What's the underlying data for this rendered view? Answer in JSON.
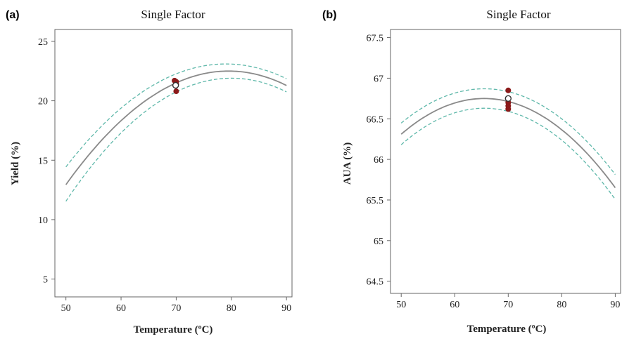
{
  "chart_data": [
    {
      "panel": "(a)",
      "type": "line",
      "title": "Single Factor",
      "xlabel": "Temperature (ºC)",
      "ylabel": "Yield (%)",
      "xlim": [
        48,
        91
      ],
      "ylim": [
        3.5,
        26
      ],
      "xticks": [
        "50",
        "60",
        "70",
        "80",
        "90"
      ],
      "yticks": [
        "5",
        "10",
        "15",
        "20",
        "25"
      ],
      "fit": {
        "a": 22.5,
        "h": 79.5,
        "k": 0.01098
      },
      "ci_upper": {
        "a": 23.1,
        "h": 79.0,
        "k": 0.0103
      },
      "ci_lower": {
        "a": 21.9,
        "h": 80.0,
        "k": 0.0115
      },
      "x_range": [
        50,
        90
      ],
      "points": [
        {
          "x": 69.7,
          "y": 21.7,
          "style": "filled"
        },
        {
          "x": 70.0,
          "y": 21.6,
          "style": "filled"
        },
        {
          "x": 70.0,
          "y": 21.4,
          "style": "filled"
        },
        {
          "x": 70.0,
          "y": 20.8,
          "style": "filled"
        },
        {
          "x": 69.9,
          "y": 21.3,
          "style": "open"
        }
      ],
      "colors": {
        "fit": "#8a8a8a",
        "ci": "#5fb8aa",
        "point": "#8b1a1a"
      }
    },
    {
      "panel": "(b)",
      "type": "line",
      "title": "Single Factor",
      "xlabel": "Temperature (ºC)",
      "ylabel": "AUA (%)",
      "xlim": [
        48,
        91
      ],
      "ylim": [
        64.35,
        67.6
      ],
      "xticks": [
        "50",
        "60",
        "70",
        "80",
        "90"
      ],
      "yticks": [
        "64.5",
        "65",
        "65.5",
        "66",
        "66.5",
        "67",
        "67.5"
      ],
      "fit": {
        "a": 66.75,
        "h": 65.5,
        "k": 0.00183
      },
      "ci_upper": {
        "a": 66.87,
        "h": 65.5,
        "k": 0.00176
      },
      "ci_lower": {
        "a": 66.63,
        "h": 65.5,
        "k": 0.00187
      },
      "x_range": [
        50,
        90
      ],
      "points": [
        {
          "x": 70.0,
          "y": 66.85,
          "style": "filled"
        },
        {
          "x": 70.0,
          "y": 66.7,
          "style": "filled"
        },
        {
          "x": 70.0,
          "y": 66.66,
          "style": "filled"
        },
        {
          "x": 70.0,
          "y": 66.62,
          "style": "filled"
        },
        {
          "x": 70.0,
          "y": 66.75,
          "style": "open"
        }
      ],
      "colors": {
        "fit": "#8a8a8a",
        "ci": "#5fb8aa",
        "point": "#8b1a1a"
      }
    }
  ]
}
